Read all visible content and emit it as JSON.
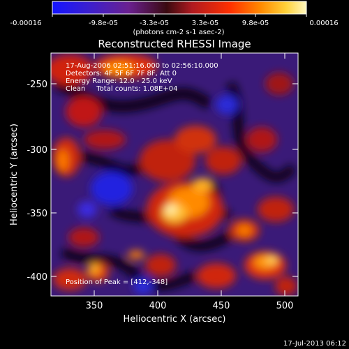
{
  "colorbar": {
    "tick_labels": [
      "-0.00016",
      "-9.8e-05",
      "-3.3e-05",
      "3.3e-05",
      "9.8e-05",
      "0.00016"
    ],
    "unit_label": "(photons cm-2 s-1 asec-2)",
    "colors": [
      "#1414ff",
      "#3a1fd0",
      "#6a2090",
      "#b01a20",
      "#ff3000",
      "#ff8a00",
      "#ffd23a",
      "#fff8c0"
    ]
  },
  "plot": {
    "title": "Reconstructed RHESSI Image",
    "xlabel": "Heliocentric X (arcsec)",
    "ylabel": "Heliocentric Y (arcsec)",
    "x_ticks": [
      "350",
      "400",
      "450",
      "500"
    ],
    "y_ticks": [
      "-250",
      "-300",
      "-350",
      "-400"
    ],
    "xlim": [
      318,
      512
    ],
    "ylim": [
      -424,
      -227
    ]
  },
  "annotations": {
    "line1": "17-Aug-2006 02:51:16.000 to 02:56:10.000",
    "line2": "Detectors: 4F 5F 6F 7F 8F, Att 0",
    "line3": "Energy Range: 12.0 - 25.0 keV",
    "line4": "Clean     Total counts: 1.08E+04",
    "peak": "Position of Peak = [412,-348]"
  },
  "footer": {
    "timestamp": "17-Jul-2013 06:12"
  }
}
